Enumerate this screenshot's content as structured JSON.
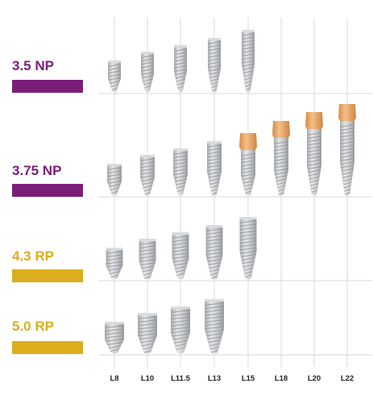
{
  "columns": [
    "L8",
    "L10",
    "L11.5",
    "L13",
    "L15",
    "L18",
    "L20",
    "L22"
  ],
  "rows": [
    {
      "label": "3.5 NP",
      "color": "#7b1e7a",
      "lengths_available": [
        "L8",
        "L10",
        "L11.5",
        "L13",
        "L15"
      ],
      "collar_lengths": []
    },
    {
      "label": "3.75 NP",
      "color": "#7b1e7a",
      "lengths_available": [
        "L8",
        "L10",
        "L11.5",
        "L13",
        "L15",
        "L18",
        "L20",
        "L22"
      ],
      "collar_lengths": [
        "L15",
        "L18",
        "L20",
        "L22"
      ]
    },
    {
      "label": "4.3 RP",
      "color": "#dcae1d",
      "lengths_available": [
        "L8",
        "L10",
        "L11.5",
        "L13",
        "L15"
      ],
      "collar_lengths": []
    },
    {
      "label": "5.0 RP",
      "color": "#dcae1d",
      "lengths_available": [
        "L8",
        "L10",
        "L11.5",
        "L13"
      ],
      "collar_lengths": []
    }
  ],
  "colors": {
    "implant_body": "#c4c6c9",
    "implant_thread": "#8f9397",
    "collar": "#e2a262",
    "grid_line": "#d9d9d9"
  }
}
